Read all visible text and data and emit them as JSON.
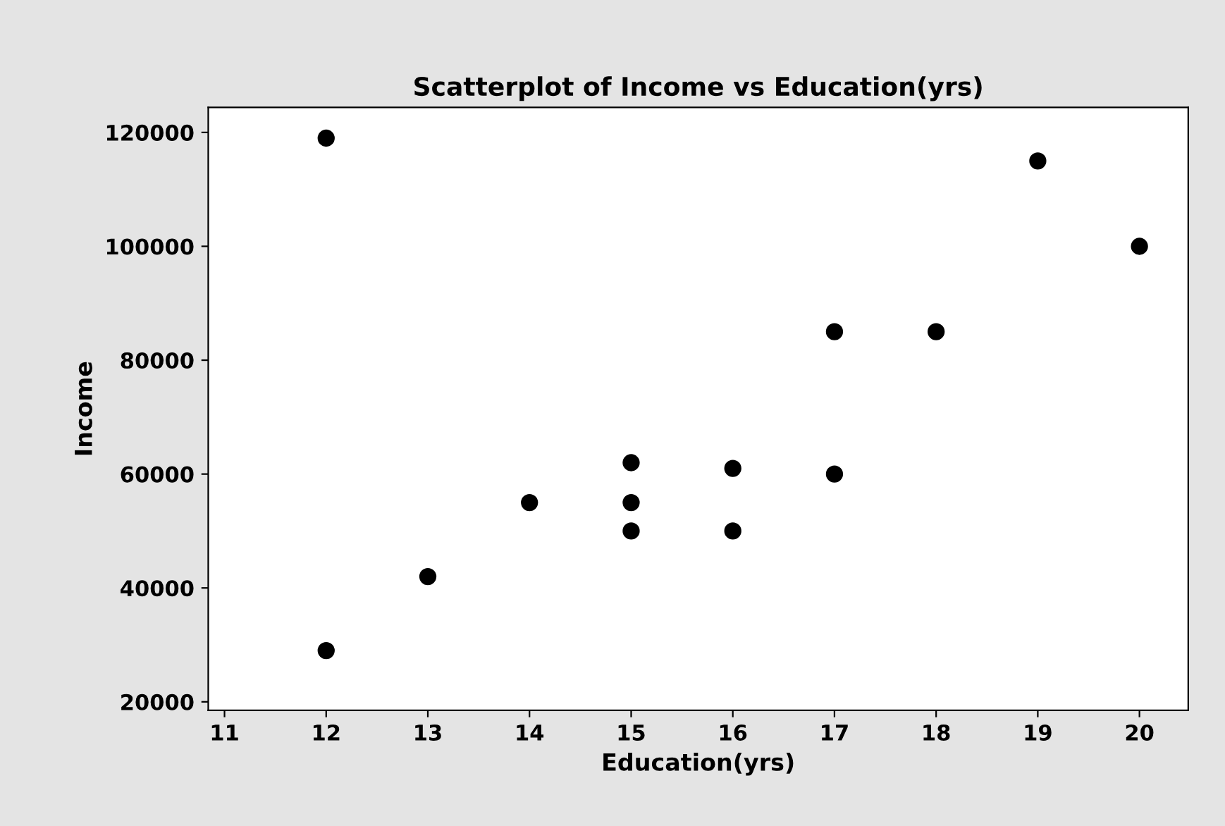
{
  "chart_data": {
    "type": "scatter",
    "title": "Scatterplot of Income vs Education(yrs)",
    "xlabel": "Education(yrs)",
    "ylabel": "Income",
    "x": [
      12,
      12,
      13,
      14,
      15,
      15,
      15,
      16,
      16,
      17,
      17,
      18,
      19,
      20
    ],
    "series": [
      {
        "color": "#000000",
        "values": [
          119000,
          29000,
          42000,
          55000,
          62000,
          55000,
          50000,
          61000,
          50000,
          85000,
          60000,
          85000,
          115000,
          100000
        ]
      }
    ],
    "xlim": [
      10.84,
      20.48
    ],
    "xticks": [
      11,
      12,
      13,
      14,
      15,
      16,
      17,
      18,
      19,
      20
    ],
    "ylim": [
      18500,
      124400
    ],
    "yticks": [
      20000,
      40000,
      60000,
      80000,
      100000,
      120000
    ],
    "marker": "circle",
    "grid": false,
    "legend": false
  }
}
